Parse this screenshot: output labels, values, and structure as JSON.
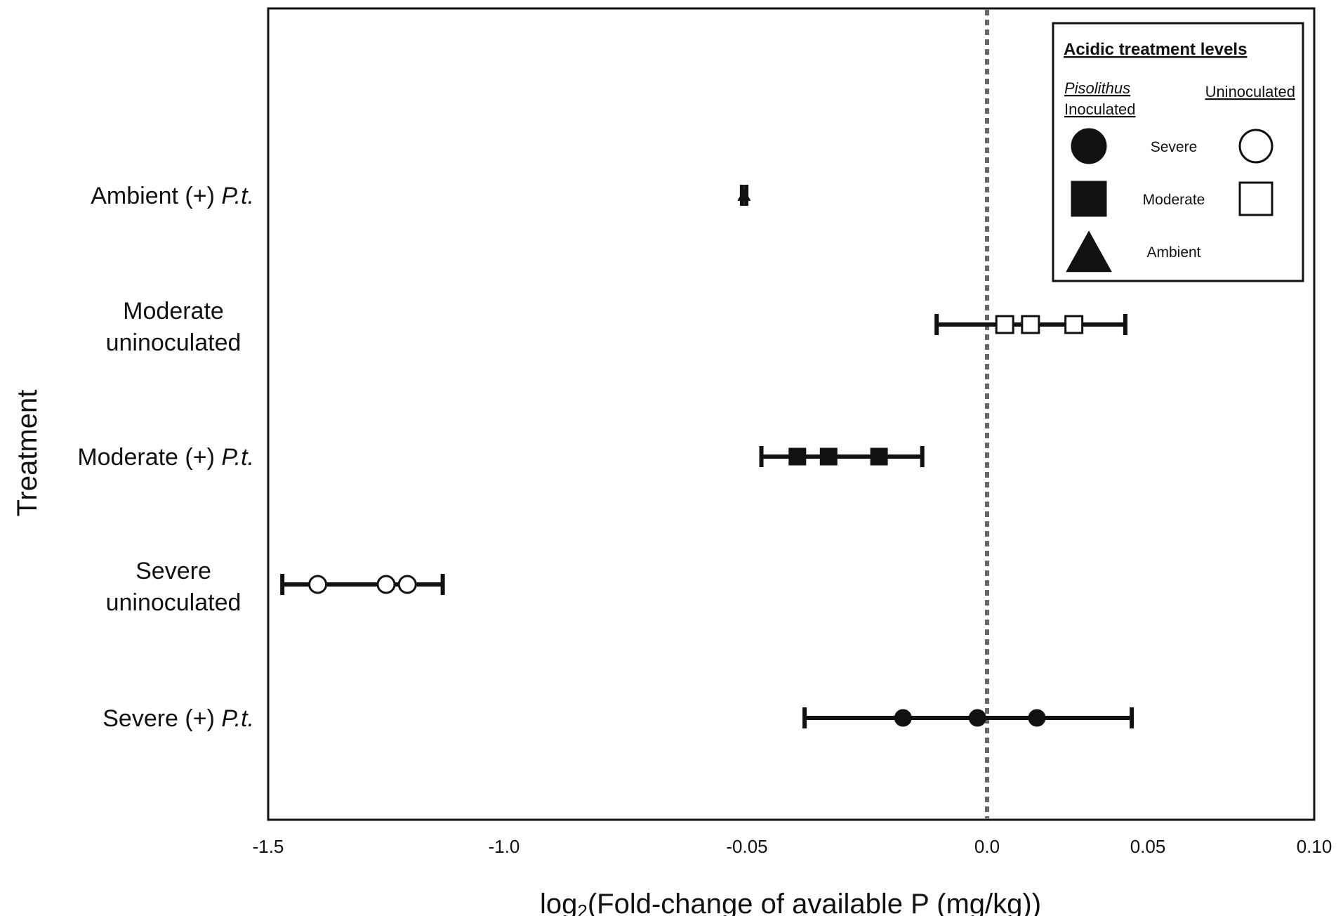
{
  "chart_data": {
    "type": "scatter",
    "title": "",
    "xlabel_main": "log",
    "xlabel_sub": "2",
    "xlabel_rest": "(Fold-change of available P (mg/kg))",
    "ylabel": "Treatment",
    "x_tick_labels": [
      "-1.5",
      "-1.0",
      "-0.05",
      "0.0",
      "0.05",
      "0.10"
    ],
    "reference_line_x": "0.0",
    "grid": false,
    "legend_position": "top-right",
    "legend": {
      "title": "Acidic treatment levels",
      "col_inoculated_line1": "Pisolithus",
      "col_inoculated_line2": "Inoculated",
      "col_uninoculated": "Uninoculated",
      "levels": [
        "Severe",
        "Moderate",
        "Ambient"
      ],
      "shapes": [
        "circle",
        "square",
        "triangle"
      ]
    },
    "categories": [
      {
        "label_lines": [
          "Ambient (+) ",
          "P.t."
        ],
        "italic_suffix": true,
        "shape": "triangle",
        "filled": true,
        "points": [
          -0.0632,
          -0.061,
          -0.0595
        ],
        "ci": [
          -0.0695,
          -0.0525
        ]
      },
      {
        "label_lines": [
          "Moderate",
          "uninoculated"
        ],
        "italic_suffix": false,
        "shape": "square",
        "filled": false,
        "points": [
          0.0055,
          0.0135,
          0.027
        ],
        "ci": [
          -0.0105,
          0.043
        ]
      },
      {
        "label_lines": [
          "Moderate (+) ",
          "P.t."
        ],
        "italic_suffix": true,
        "shape": "square",
        "filled": true,
        "points": [
          -0.0395,
          -0.033,
          -0.0225
        ],
        "ci": [
          -0.047,
          -0.0135
        ]
      },
      {
        "label_lines": [
          "Severe",
          "uninoculated"
        ],
        "italic_suffix": false,
        "shape": "circle",
        "filled": false,
        "points": [
          -1.395,
          -1.25,
          -1.205
        ],
        "ci": [
          -1.47,
          -1.13
        ]
      },
      {
        "label_lines": [
          "Severe (+) ",
          "P.t."
        ],
        "italic_suffix": true,
        "shape": "circle",
        "filled": true,
        "points": [
          -0.0175,
          -0.002,
          0.0155
        ],
        "ci": [
          -0.038,
          0.045
        ]
      }
    ]
  }
}
